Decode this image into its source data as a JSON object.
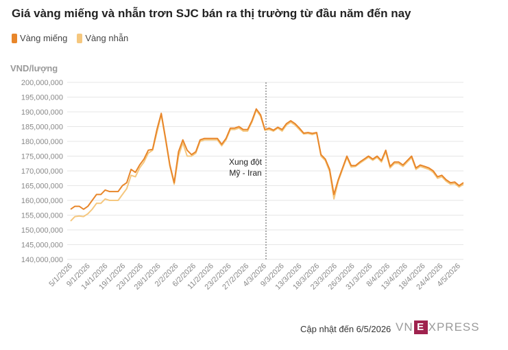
{
  "title": "Giá vàng miếng và nhẫn trơn SJC bán ra thị trường từ đầu năm đến nay",
  "footer": {
    "updated": "Cập nhật đến 6/5/2026",
    "brand_prefix": "VN",
    "brand_mark": "E",
    "brand_suffix": "XPRESS"
  },
  "colors": {
    "vang_mieng": "#e8862a",
    "vang_nhan": "#f5c77e",
    "grid": "#e6e6e6",
    "annotation_line": "#555555"
  },
  "chart_data": {
    "type": "line",
    "title": "Giá vàng miếng và nhẫn trơn SJC bán ra thị trường từ đầu năm đến nay",
    "ylabel": "VND/lượng",
    "ylim": [
      140000000,
      200000000
    ],
    "yticks": [
      "140,000,000",
      "145,000,000",
      "150,000,000",
      "155,000,000",
      "160,000,000",
      "165,000,000",
      "170,000,000",
      "175,000,000",
      "180,000,000",
      "185,000,000",
      "190,000,000",
      "195,000,000",
      "200,000,000"
    ],
    "xtick_labels": [
      "5/1/2026",
      "9/1/2026",
      "14/1/2026",
      "19/1/2026",
      "23/1/2026",
      "28/1/2026",
      "2/2/2026",
      "6/2/2026",
      "11/2/2026",
      "23/2/2026",
      "27/2/2026",
      "4/3/2026",
      "9/3/2026",
      "13/3/2026",
      "18/3/2026",
      "23/3/2026",
      "26/3/2026",
      "31/3/2026",
      "8/4/2026",
      "13/4/2026",
      "18/4/2026",
      "24/4/2026",
      "4/5/2026"
    ],
    "grid": true,
    "legend_position": "top-left",
    "annotation": {
      "text": [
        "Xung đột",
        "Mỹ - Iran"
      ],
      "at_tick": "4/3/2026"
    },
    "series": [
      {
        "name": "Vàng miếng",
        "values": [
          157,
          158,
          158,
          157,
          158,
          160,
          162,
          162,
          163.5,
          163,
          163,
          163,
          165,
          166,
          170.5,
          169.5,
          172,
          174,
          177,
          177.3,
          184,
          189.5,
          181,
          172,
          166,
          176.5,
          180.5,
          177,
          175.5,
          176.5,
          180.5,
          181,
          181,
          181,
          181,
          179,
          181,
          184.5,
          184.5,
          185,
          184,
          184,
          187,
          191,
          189,
          184,
          184.5,
          183.8,
          184.8,
          184,
          186,
          187,
          186,
          184.5,
          182.8,
          183,
          182.7,
          183,
          175.5,
          174,
          170.5,
          162,
          167,
          171,
          175,
          171.8,
          171.8,
          173,
          174,
          175,
          174,
          175,
          173.5,
          177,
          171.5,
          173,
          173,
          172,
          173.5,
          175,
          171,
          172,
          171.5,
          171,
          170,
          168,
          168.5,
          167,
          166,
          166.2,
          165,
          166
        ]
      },
      {
        "name": "Vàng nhẫn",
        "values": [
          153,
          154.5,
          154.7,
          154.5,
          155.5,
          157,
          159,
          159,
          160.5,
          160,
          160,
          160,
          162,
          164,
          168.5,
          168,
          171,
          173,
          176,
          177,
          183,
          189,
          180.5,
          171.5,
          165.5,
          175,
          179.5,
          175,
          175,
          176,
          180,
          180.5,
          180.5,
          180.5,
          180.5,
          178.5,
          180.5,
          184,
          184,
          184.5,
          183.5,
          183.5,
          186.5,
          190.5,
          188.5,
          183.8,
          184,
          183.5,
          184.5,
          183.5,
          185.5,
          186.5,
          185.5,
          184,
          182.5,
          182.7,
          182.3,
          182.8,
          175,
          173.5,
          169.8,
          160.5,
          166.5,
          170.5,
          174.5,
          171.3,
          171.5,
          172.6,
          173.6,
          174.6,
          173.6,
          174.6,
          173,
          176.5,
          171,
          172.5,
          172.5,
          171.5,
          173,
          174.5,
          170.5,
          171.5,
          171,
          170.5,
          169.5,
          167.5,
          168,
          166.5,
          165.5,
          165.7,
          164.5,
          165.5
        ]
      }
    ]
  }
}
